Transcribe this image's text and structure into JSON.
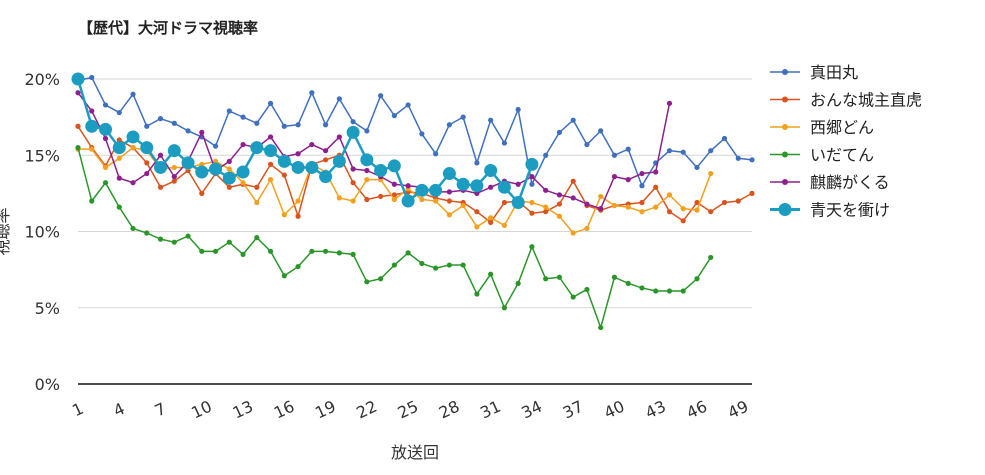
{
  "chart_data": {
    "type": "line",
    "title": "【歴代】大河ドラマ視聴率",
    "xlabel": "放送回",
    "ylabel": "視聴率",
    "x_ticks": [
      "1",
      "4",
      "7",
      "10",
      "13",
      "16",
      "19",
      "22",
      "25",
      "28",
      "31",
      "34",
      "37",
      "40",
      "43",
      "46",
      "49"
    ],
    "xlim": [
      1,
      50
    ],
    "y_ticks": [
      "0%",
      "5%",
      "10%",
      "15%",
      "20%"
    ],
    "ylim": [
      0,
      20
    ],
    "grid": "horizontal",
    "legend_position": "right",
    "series": [
      {
        "name": "真田丸",
        "color": "#3f6fbf",
        "marker_size": "small",
        "values": [
          19.9,
          20.1,
          18.3,
          17.8,
          19.0,
          16.9,
          17.4,
          17.1,
          16.6,
          16.2,
          15.6,
          17.9,
          17.5,
          17.1,
          18.4,
          16.9,
          17.0,
          19.1,
          17.0,
          18.7,
          17.2,
          16.6,
          18.9,
          17.6,
          18.3,
          16.4,
          15.1,
          17.0,
          17.5,
          14.5,
          17.3,
          15.8,
          18.0,
          13.1,
          15.0,
          16.5,
          17.3,
          15.7,
          16.6,
          15.0,
          15.4,
          13.0,
          14.5,
          15.3,
          15.2,
          14.2,
          15.3,
          16.1,
          14.8,
          14.7
        ]
      },
      {
        "name": "おんな城主直虎",
        "color": "#d9531e",
        "marker_size": "small",
        "values": [
          16.9,
          15.5,
          14.3,
          16.0,
          15.5,
          14.5,
          12.9,
          13.3,
          14.0,
          12.5,
          13.8,
          12.9,
          13.1,
          12.9,
          14.4,
          13.7,
          11.0,
          14.4,
          14.7,
          15.0,
          13.2,
          12.1,
          12.3,
          12.4,
          12.6,
          12.5,
          12.2,
          12.0,
          11.9,
          11.3,
          10.6,
          11.9,
          12.0,
          11.2,
          11.3,
          11.8,
          13.3,
          11.7,
          11.4,
          11.7,
          11.8,
          11.9,
          12.9,
          11.3,
          10.7,
          11.9,
          11.3,
          11.9,
          12.0,
          12.5
        ]
      },
      {
        "name": "西郷どん",
        "color": "#f2a01e",
        "marker_size": "small",
        "values": [
          15.4,
          15.4,
          14.2,
          14.8,
          15.5,
          15.3,
          14.1,
          14.2,
          14.2,
          14.4,
          14.6,
          14.1,
          13.2,
          11.9,
          13.4,
          11.1,
          12.0,
          14.4,
          13.9,
          12.2,
          12.0,
          13.4,
          13.4,
          12.1,
          12.8,
          12.1,
          12.0,
          11.1,
          11.7,
          10.3,
          10.9,
          10.4,
          12.0,
          11.9,
          11.6,
          11.0,
          9.9,
          10.2,
          12.3,
          11.7,
          11.6,
          11.3,
          11.6,
          12.4,
          11.5,
          11.4,
          13.8
        ]
      },
      {
        "name": "いだてん",
        "color": "#2a962a",
        "marker_size": "small",
        "values": [
          15.5,
          12.0,
          13.2,
          11.6,
          10.2,
          9.9,
          9.5,
          9.3,
          9.7,
          8.7,
          8.7,
          9.3,
          8.5,
          9.6,
          8.7,
          7.1,
          7.7,
          8.7,
          8.7,
          8.6,
          8.5,
          6.7,
          6.9,
          7.8,
          8.6,
          7.9,
          7.6,
          7.8,
          7.8,
          5.9,
          7.2,
          5.0,
          6.6,
          9.0,
          6.9,
          7.0,
          5.7,
          6.2,
          3.7,
          7.0,
          6.6,
          6.3,
          6.1,
          6.1,
          6.1,
          6.9,
          8.3
        ]
      },
      {
        "name": "麒麟がくる",
        "color": "#8e1f8e",
        "marker_size": "small",
        "values": [
          19.1,
          17.9,
          16.1,
          13.5,
          13.2,
          13.8,
          15.0,
          13.6,
          14.6,
          16.5,
          14.0,
          14.6,
          15.7,
          15.5,
          16.2,
          14.9,
          15.1,
          15.7,
          15.3,
          16.2,
          14.1,
          14.0,
          13.6,
          13.1,
          13.0,
          12.9,
          12.6,
          12.6,
          12.7,
          12.5,
          12.9,
          13.3,
          13.1,
          13.6,
          12.7,
          12.4,
          12.2,
          11.8,
          11.5,
          13.6,
          13.4,
          13.8,
          13.9,
          18.4
        ]
      },
      {
        "name": "青天を衝け",
        "color": "#1c9cc0",
        "marker_size": "large",
        "values": [
          20.0,
          16.9,
          16.7,
          15.5,
          16.2,
          15.5,
          14.2,
          15.3,
          14.5,
          13.9,
          14.1,
          13.5,
          13.9,
          15.5,
          15.3,
          14.6,
          14.2,
          14.2,
          13.6,
          14.6,
          16.5,
          14.7,
          14.0,
          14.3,
          12.0,
          12.7,
          12.7,
          13.8,
          13.1,
          13.0,
          14.0,
          12.9,
          11.9,
          14.4
        ]
      }
    ]
  }
}
